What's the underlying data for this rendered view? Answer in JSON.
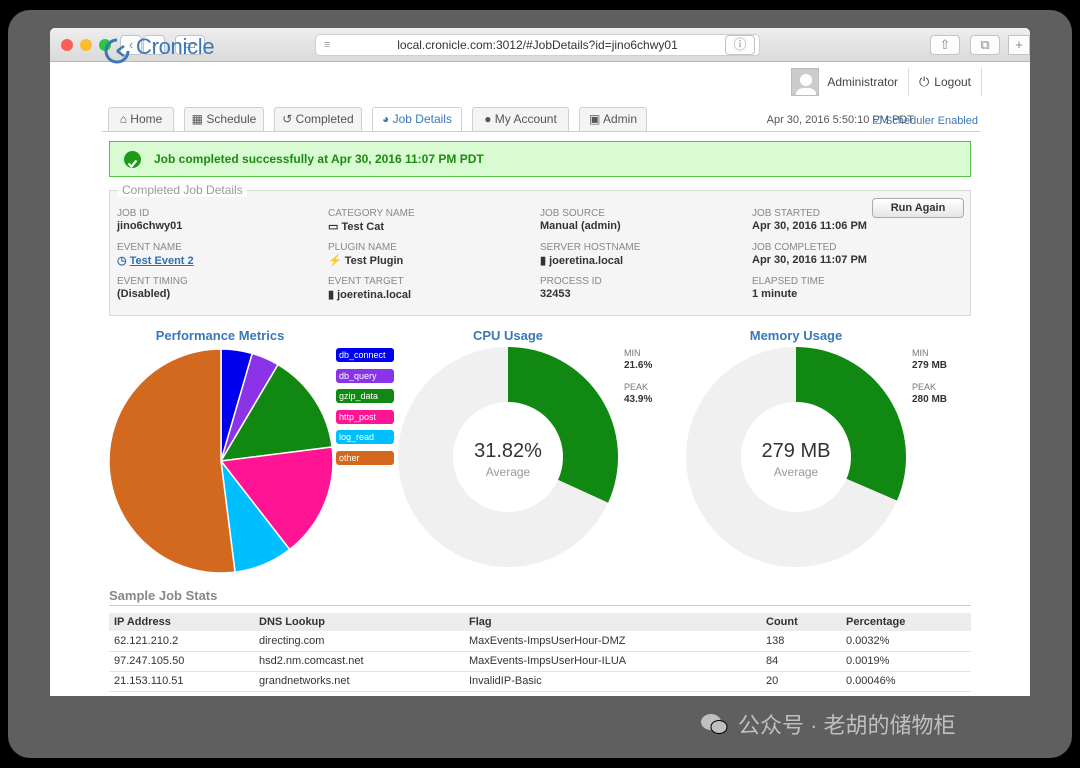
{
  "browser": {
    "url": "local.cronicle.com:3012/#JobDetails?id=jino6chwy01"
  },
  "app": {
    "name": "Cronicle",
    "user": "Administrator",
    "logout": "Logout"
  },
  "tabs": [
    {
      "label": "Home",
      "icon": "home-icon"
    },
    {
      "label": "Schedule",
      "icon": "calendar-icon"
    },
    {
      "label": "Completed",
      "icon": "history-icon"
    },
    {
      "label": "Job Details",
      "icon": "pie-chart-icon"
    },
    {
      "label": "My Account",
      "icon": "user-icon"
    },
    {
      "label": "Admin",
      "icon": "lock-icon"
    }
  ],
  "clock": "Apr 30, 2016 5:50:10 PM PDT",
  "scheduler": "Scheduler Enabled",
  "banner": "Job completed successfully at Apr 30, 2016 11:07 PM PDT",
  "details": {
    "legend": "Completed Job Details",
    "run_again": "Run Again",
    "fields": [
      {
        "label": "Job ID",
        "value": "jino6chwy01"
      },
      {
        "label": "Event Name",
        "value": "Test Event 2"
      },
      {
        "label": "Event Timing",
        "value": "(Disabled)"
      },
      {
        "label": "Category Name",
        "value": "Test Cat"
      },
      {
        "label": "Plugin Name",
        "value": "Test Plugin"
      },
      {
        "label": "Event Target",
        "value": "joeretina.local"
      },
      {
        "label": "Job Source",
        "value": "Manual (admin)"
      },
      {
        "label": "Server Hostname",
        "value": "joeretina.local"
      },
      {
        "label": "Process ID",
        "value": "32453"
      },
      {
        "label": "Job Started",
        "value": "Apr 30, 2016 11:06 PM"
      },
      {
        "label": "Job Completed",
        "value": "Apr 30, 2016 11:07 PM"
      },
      {
        "label": "Elapsed Time",
        "value": "1 minute"
      }
    ]
  },
  "chart_data": [
    {
      "type": "pie",
      "title": "Performance Metrics",
      "categories": [
        "db_connect",
        "db_query",
        "gzip_data",
        "http_post",
        "log_read",
        "other"
      ],
      "values": [
        4.5,
        4.0,
        14.5,
        16.5,
        8.5,
        52.0
      ],
      "colors": [
        "#0000ee",
        "#8b33e6",
        "#118811",
        "#ff1493",
        "#00bfff",
        "#d2691e"
      ]
    },
    {
      "type": "pie",
      "title": "CPU Usage",
      "center_value": "31.82%",
      "center_label": "Average",
      "values": [
        31.82,
        68.18
      ],
      "colors": [
        "#118811",
        "#f0f0f0"
      ],
      "stats": [
        {
          "label": "Min",
          "value": "21.6%"
        },
        {
          "label": "Peak",
          "value": "43.9%"
        }
      ]
    },
    {
      "type": "pie",
      "title": "Memory Usage",
      "center_value": "279 MB",
      "center_label": "Average",
      "values": [
        31.5,
        68.5
      ],
      "colors": [
        "#118811",
        "#f0f0f0"
      ],
      "stats": [
        {
          "label": "Min",
          "value": "279 MB"
        },
        {
          "label": "Peak",
          "value": "280 MB"
        }
      ]
    }
  ],
  "stats_table": {
    "title": "Sample Job Stats",
    "columns": [
      "IP Address",
      "DNS Lookup",
      "Flag",
      "Count",
      "Percentage"
    ],
    "rows": [
      [
        "62.121.210.2",
        "directing.com",
        "MaxEvents-ImpsUserHour-DMZ",
        "138",
        "0.0032%"
      ],
      [
        "97.247.105.50",
        "hsd2.nm.comcast.net",
        "MaxEvents-ImpsUserHour-ILUA",
        "84",
        "0.0019%"
      ],
      [
        "21.153.110.51",
        "grandnetworks.net",
        "InvalidIP-Basic",
        "20",
        "0.00046%"
      ]
    ]
  },
  "watermark": "公众号 · 老胡的储物柜"
}
